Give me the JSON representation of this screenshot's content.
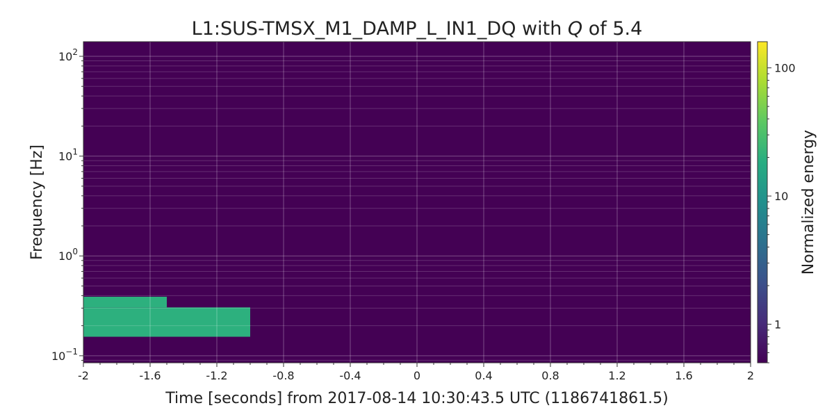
{
  "chart_data": {
    "type": "heatmap",
    "title": {
      "prefix": "L1:SUS-TMSX_M1_DAMP_L_IN1_DQ with ",
      "q_symbol": "Q",
      "suffix": " of 5.4"
    },
    "xlabel": "Time [seconds] from 2017-08-14 10:30:43.5 UTC (1186741861.5)",
    "ylabel": "Frequency [Hz]",
    "xlim": [
      -2,
      2
    ],
    "ylim": [
      0.085,
      140
    ],
    "yscale": "log",
    "grid": true,
    "x_ticks": [
      {
        "value": -2,
        "label": "-2"
      },
      {
        "value": -1.6,
        "label": "-1.6"
      },
      {
        "value": -1.2,
        "label": "-1.2"
      },
      {
        "value": -0.8,
        "label": "-0.8"
      },
      {
        "value": -0.4,
        "label": "-0.4"
      },
      {
        "value": 0,
        "label": "0"
      },
      {
        "value": 0.4,
        "label": "0.4"
      },
      {
        "value": 0.8,
        "label": "0.8"
      },
      {
        "value": 1.2,
        "label": "1.2"
      },
      {
        "value": 1.6,
        "label": "1.6"
      },
      {
        "value": 2,
        "label": "2"
      }
    ],
    "y_ticks": [
      {
        "value": 0.1,
        "base": "10",
        "exp": "−1"
      },
      {
        "value": 1,
        "base": "10",
        "exp": "0"
      },
      {
        "value": 10,
        "base": "10",
        "exp": "1"
      },
      {
        "value": 100,
        "base": "10",
        "exp": "2"
      }
    ],
    "background_energy": 0.5,
    "tiles": [
      {
        "t0": -2,
        "t1": -1.5,
        "f0": 0.305,
        "f1": 0.39,
        "energy": 20
      },
      {
        "t0": -2,
        "t1": -1.0,
        "f0": 0.155,
        "f1": 0.305,
        "energy": 20
      }
    ],
    "colorbar": {
      "label": "Normalized energy",
      "scale": "log",
      "range": [
        0.5,
        160
      ],
      "colormap": "viridis",
      "ticks": [
        {
          "value": 1,
          "label": "1"
        },
        {
          "value": 10,
          "label": "10"
        },
        {
          "value": 100,
          "label": "100"
        }
      ]
    }
  }
}
